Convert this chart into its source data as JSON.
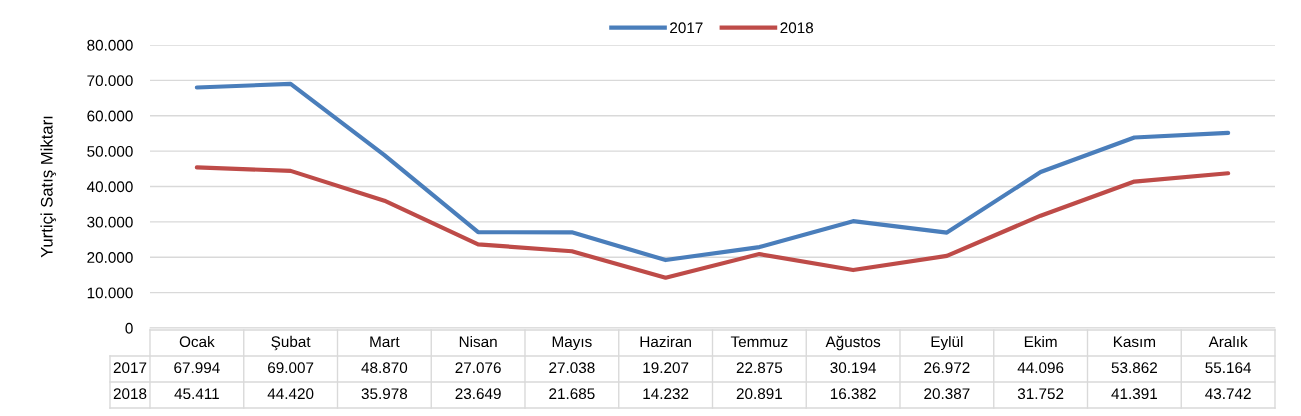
{
  "chart_data": {
    "type": "line",
    "ylabel": "Yurtiçi Satış Miktarı",
    "categories": [
      "Ocak",
      "Şubat",
      "Mart",
      "Nisan",
      "Mayıs",
      "Haziran",
      "Temmuz",
      "Ağustos",
      "Eylül",
      "Ekim",
      "Kasım",
      "Aralık"
    ],
    "series": [
      {
        "name": "2017",
        "color": "#4a7ebb",
        "values": [
          67994,
          69007,
          48870,
          27076,
          27038,
          19207,
          22875,
          30194,
          26972,
          44096,
          53862,
          55164
        ],
        "value_labels": [
          "67.994",
          "69.007",
          "48.870",
          "27.076",
          "27.038",
          "19.207",
          "22.875",
          "30.194",
          "26.972",
          "44.096",
          "53.862",
          "55.164"
        ]
      },
      {
        "name": "2018",
        "color": "#be4b48",
        "values": [
          45411,
          44420,
          35978,
          23649,
          21685,
          14232,
          20891,
          16382,
          20387,
          31752,
          41391,
          43742
        ],
        "value_labels": [
          "45.411",
          "44.420",
          "35.978",
          "23.649",
          "21.685",
          "14.232",
          "20.891",
          "16.382",
          "20.387",
          "31.752",
          "41.391",
          "43.742"
        ]
      }
    ],
    "ylim": [
      0,
      80000
    ],
    "yticks": [
      0,
      {
        "value": 10000,
        "label": "10.000"
      },
      {
        "value": 20000,
        "label": "20.000"
      },
      {
        "value": 30000,
        "label": "30.000"
      },
      {
        "value": 40000,
        "label": "40.000"
      },
      {
        "value": 50000,
        "label": "50.000"
      },
      {
        "value": 60000,
        "label": "60.000"
      },
      {
        "value": 70000,
        "label": "70.000"
      },
      {
        "value": 80000,
        "label": "80.000"
      }
    ],
    "grid": "y",
    "legend": "top",
    "marker": "none",
    "line_style": "solid"
  }
}
